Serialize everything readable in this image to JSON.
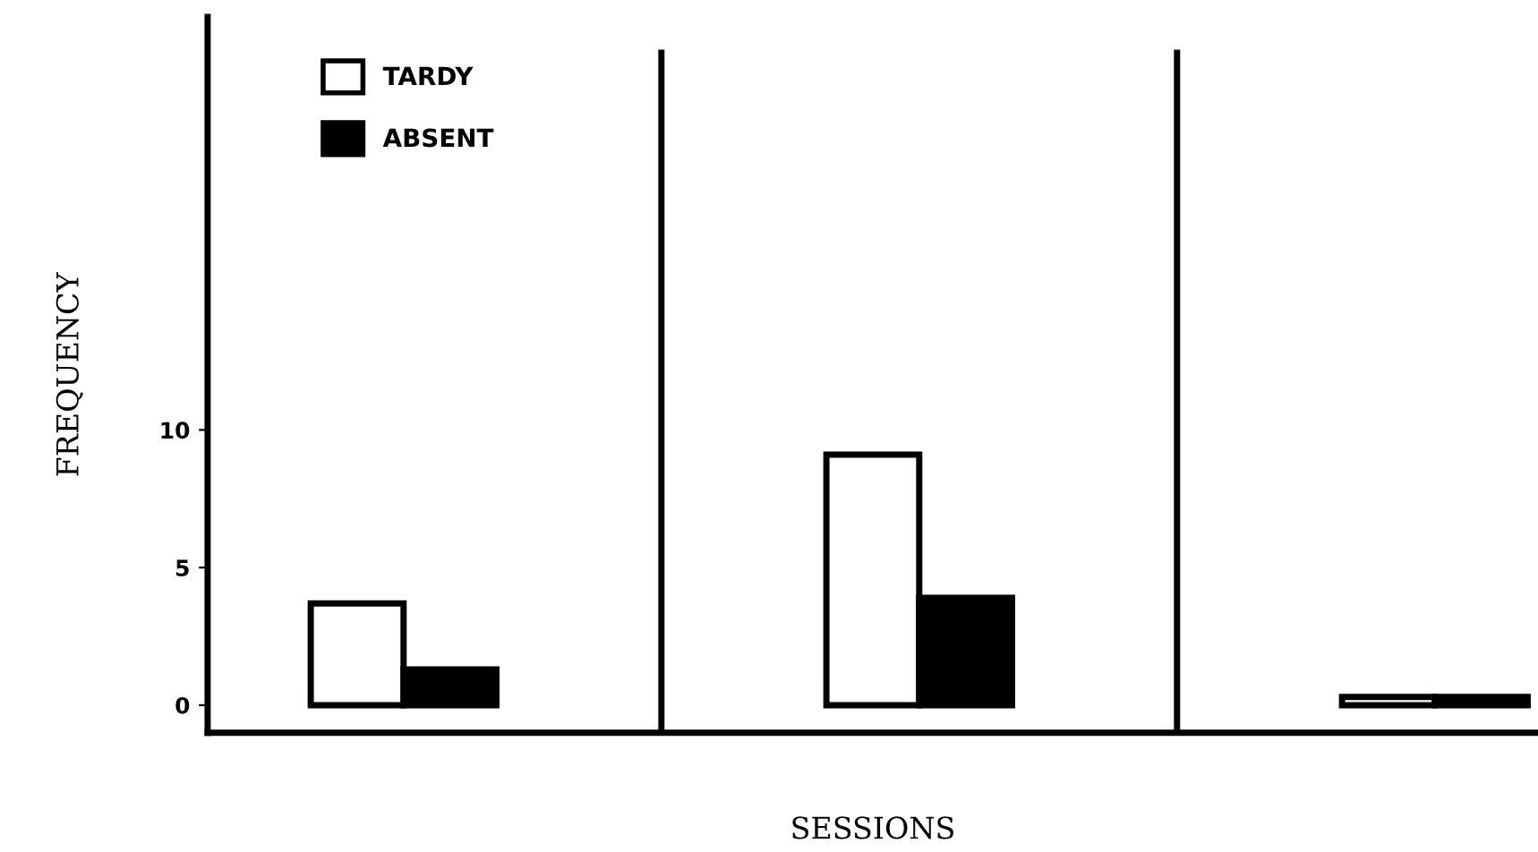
{
  "chart_data": {
    "type": "bar",
    "xlabel": "SESSIONS",
    "ylabel": "FREQUENCY",
    "categories": [
      null,
      null,
      null
    ],
    "series": [
      {
        "name": "TARDY",
        "color": "#ffffff",
        "values": [
          3.7,
          9.1,
          0.3
        ]
      },
      {
        "name": "ABSENT",
        "color": "#000000",
        "values": [
          1.3,
          3.9,
          0.3
        ]
      }
    ],
    "ylim": [
      -1,
      25
    ],
    "yticks": [
      0,
      5,
      10
    ],
    "legend": "top left",
    "grid": false
  }
}
